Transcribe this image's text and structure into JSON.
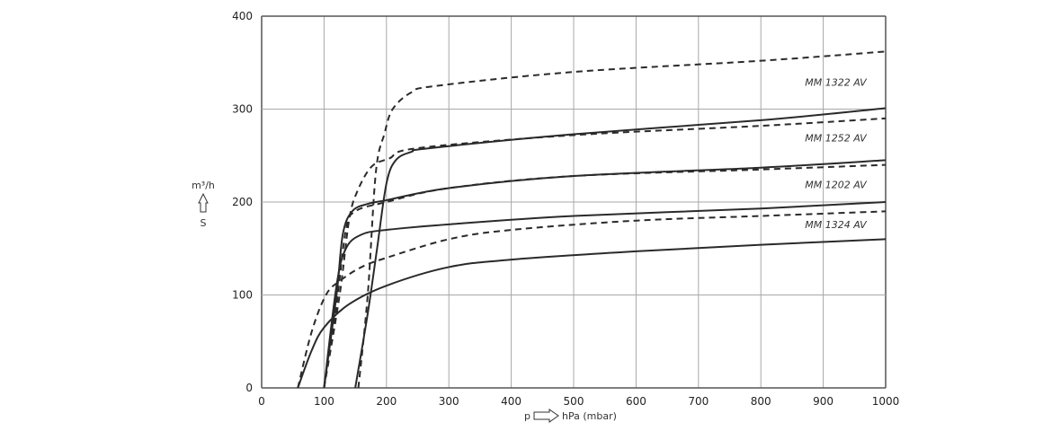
{
  "chart_data": {
    "type": "line",
    "title": "",
    "xlabel": "p ⇨ hPa (mbar)",
    "xlabel_parts": {
      "symbol": "p",
      "unit": "hPa (mbar)"
    },
    "ylabel": "m³/h",
    "ylabel_symbol": "S",
    "xlim": [
      0,
      1000
    ],
    "ylim": [
      0,
      400
    ],
    "xticks": [
      0,
      100,
      200,
      300,
      400,
      500,
      600,
      700,
      800,
      900,
      1000
    ],
    "yticks": [
      0,
      100,
      200,
      300,
      400
    ],
    "grid": true,
    "colors": {
      "line": "#2a2a2a",
      "grid": "#a8a8a8",
      "axis": "#555555"
    },
    "series": [
      {
        "style": "solid",
        "points": [
          [
            150,
            0
          ],
          [
            170,
            80
          ],
          [
            185,
            150
          ],
          [
            200,
            220
          ],
          [
            215,
            245
          ],
          [
            240,
            254
          ],
          [
            270,
            258
          ],
          [
            500,
            273
          ],
          [
            800,
            288
          ],
          [
            1000,
            301
          ]
        ]
      },
      {
        "style": "dashed",
        "points": [
          [
            155,
            0
          ],
          [
            170,
            100
          ],
          [
            183,
            232
          ],
          [
            197,
            274
          ],
          [
            210,
            300
          ],
          [
            240,
            318
          ],
          [
            280,
            325
          ],
          [
            500,
            340
          ],
          [
            800,
            352
          ],
          [
            1000,
            362
          ]
        ]
      },
      {
        "style": "solid",
        "points": [
          [
            100,
            0
          ],
          [
            120,
            100
          ],
          [
            130,
            165
          ],
          [
            145,
            190
          ],
          [
            170,
            198
          ],
          [
            200,
            202
          ],
          [
            300,
            215
          ],
          [
            500,
            228
          ],
          [
            800,
            237
          ],
          [
            1000,
            245
          ]
        ]
      },
      {
        "style": "dashed",
        "points": [
          [
            100,
            0
          ],
          [
            125,
            100
          ],
          [
            140,
            180
          ],
          [
            153,
            211
          ],
          [
            176,
            238
          ],
          [
            205,
            247
          ],
          [
            250,
            258
          ],
          [
            500,
            272
          ],
          [
            800,
            282
          ],
          [
            1000,
            290
          ]
        ]
      },
      {
        "style": "solid",
        "points": [
          [
            100,
            0
          ],
          [
            120,
            110
          ],
          [
            135,
            150
          ],
          [
            160,
            165
          ],
          [
            200,
            170
          ],
          [
            300,
            176
          ],
          [
            500,
            185
          ],
          [
            800,
            193
          ],
          [
            1000,
            200
          ]
        ]
      },
      {
        "style": "dashed",
        "points": [
          [
            100,
            0
          ],
          [
            120,
            90
          ],
          [
            135,
            170
          ],
          [
            150,
            190
          ],
          [
            200,
            200
          ],
          [
            300,
            215
          ],
          [
            500,
            228
          ],
          [
            800,
            235
          ],
          [
            1000,
            240
          ]
        ]
      },
      {
        "style": "solid",
        "points": [
          [
            58,
            0
          ],
          [
            80,
            40
          ],
          [
            100,
            65
          ],
          [
            140,
            90
          ],
          [
            200,
            110
          ],
          [
            300,
            130
          ],
          [
            400,
            138
          ],
          [
            600,
            147
          ],
          [
            800,
            154
          ],
          [
            1000,
            160
          ]
        ]
      },
      {
        "style": "dashed",
        "points": [
          [
            58,
            0
          ],
          [
            80,
            60
          ],
          [
            103,
            100
          ],
          [
            125,
            115
          ],
          [
            160,
            130
          ],
          [
            200,
            140
          ],
          [
            300,
            160
          ],
          [
            400,
            170
          ],
          [
            600,
            180
          ],
          [
            800,
            185
          ],
          [
            1000,
            190
          ]
        ]
      }
    ],
    "annotations": [
      {
        "text": "MM 1322 AV",
        "x": 920,
        "y": 325
      },
      {
        "text": "MM 1252 AV",
        "x": 920,
        "y": 265
      },
      {
        "text": "MM 1202 AV",
        "x": 920,
        "y": 215
      },
      {
        "text": "MM 1324 AV",
        "x": 920,
        "y": 172
      }
    ]
  }
}
